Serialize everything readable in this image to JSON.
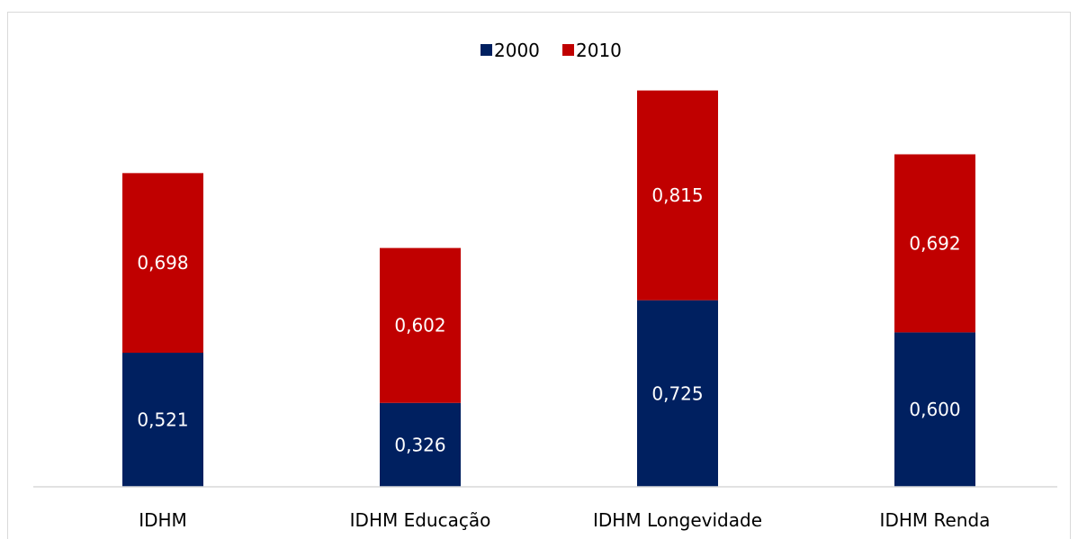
{
  "chart_data": {
    "type": "bar",
    "stacked": true,
    "categories": [
      "IDHM",
      "IDHM Educação",
      "IDHM Longevidade",
      "IDHM Renda"
    ],
    "series": [
      {
        "name": "2000",
        "color": "#002060",
        "values": [
          0.521,
          0.326,
          0.725,
          0.6
        ],
        "labels": [
          "0,521",
          "0,326",
          "0,725",
          "0,600"
        ]
      },
      {
        "name": "2010",
        "color": "#C00000",
        "values": [
          0.698,
          0.602,
          0.815,
          0.692
        ],
        "labels": [
          "0,698",
          "0,602",
          "0,815",
          "0,692"
        ]
      }
    ],
    "legend_position": "top-center",
    "grid": false
  }
}
